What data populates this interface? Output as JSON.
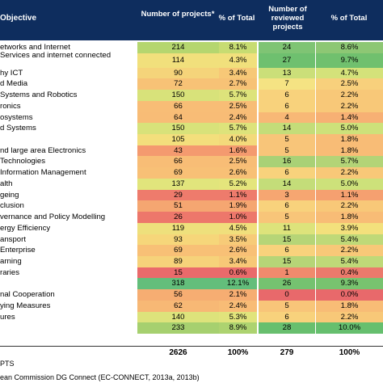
{
  "header": {
    "objective": "Objective",
    "col1": "Number of projects*",
    "col2": "% of Total",
    "col3": "Number of reviewed projects",
    "col4": "% of Total"
  },
  "rows": [
    {
      "label": "etworks and Internet",
      "n": "214",
      "p": "8.1%",
      "rn": "24",
      "rp": "8.6%",
      "c1": "#b5d66f",
      "c2": "#c7dc72",
      "c3": "#7fc474",
      "c4": "#8dc774"
    },
    {
      "label": "Services and internet connected",
      "n": "114",
      "p": "4.3%",
      "rn": "27",
      "rp": "9.7%",
      "c1": "#f1e07c",
      "c2": "#f1e07c",
      "c3": "#6ec06f",
      "c4": "#70c06e",
      "tall": true
    },
    {
      "label": "hy ICT",
      "n": "90",
      "p": "3.4%",
      "rn": "13",
      "rp": "4.7%",
      "c1": "#f5d47a",
      "c2": "#f7c877",
      "c3": "#cbdf79",
      "c4": "#d4e27a"
    },
    {
      "label": "d Media",
      "n": "72",
      "p": "2.7%",
      "rn": "7",
      "rp": "2.5%",
      "c1": "#f7c276",
      "c2": "#f7c276",
      "c3": "#f5e383",
      "c4": "#f8d07c"
    },
    {
      "label": "Systems and Robotics",
      "n": "150",
      "p": "5.7%",
      "rn": "6",
      "rp": "2.2%",
      "c1": "#d8e27a",
      "c2": "#dde37b",
      "c3": "#f8d27c",
      "c4": "#f8c878"
    },
    {
      "label": "ronics",
      "n": "66",
      "p": "2.5%",
      "rn": "6",
      "rp": "2.2%",
      "c1": "#f8bd76",
      "c2": "#f8bd76",
      "c3": "#f8d27c",
      "c4": "#f8c878"
    },
    {
      "label": "osystems",
      "n": "64",
      "p": "2.4%",
      "rn": "4",
      "rp": "1.4%",
      "c1": "#f8bc76",
      "c2": "#f8bc76",
      "c3": "#f8b876",
      "c4": "#f7b074"
    },
    {
      "label": "d Systems",
      "n": "150",
      "p": "5.7%",
      "rn": "14",
      "rp": "5.0%",
      "c1": "#d8e27a",
      "c2": "#dde37b",
      "c3": "#c4dd79",
      "c4": "#cde17a"
    },
    {
      "label": "",
      "n": "105",
      "p": "4.0%",
      "rn": "5",
      "rp": "1.8%",
      "c1": "#f3df7c",
      "c2": "#f3da7b",
      "c3": "#f8c579",
      "c4": "#f8bc76"
    },
    {
      "label": "nd large area Electronics",
      "n": "43",
      "p": "1.6%",
      "rn": "5",
      "rp": "1.8%",
      "c1": "#f49a6f",
      "c2": "#f49a6f",
      "c3": "#f8c579",
      "c4": "#f8bc76"
    },
    {
      "label": "Technologies",
      "n": "66",
      "p": "2.5%",
      "rn": "16",
      "rp": "5.7%",
      "c1": "#f8bd76",
      "c2": "#f8bd76",
      "c3": "#a9d176",
      "c4": "#b3d477"
    },
    {
      "label": "Information Management",
      "n": "69",
      "p": "2.6%",
      "rn": "6",
      "rp": "2.2%",
      "c1": "#f8c076",
      "c2": "#f8c076",
      "c3": "#f8d27c",
      "c4": "#f8c878"
    },
    {
      "label": "alth",
      "n": "137",
      "p": "5.2%",
      "rn": "14",
      "rp": "5.0%",
      "c1": "#e1e57c",
      "c2": "#e4e57c",
      "c3": "#c4dd79",
      "c4": "#cde17a"
    },
    {
      "label": "geing",
      "n": "29",
      "p": "1.1%",
      "rn": "3",
      "rp": "1.1%",
      "c1": "#ee7b6c",
      "c2": "#ee7b6c",
      "c3": "#f6a671",
      "c4": "#f5a070"
    },
    {
      "label": "clusion",
      "n": "51",
      "p": "1.9%",
      "rn": "6",
      "rp": "2.2%",
      "c1": "#f5a671",
      "c2": "#f5a671",
      "c3": "#f8d27c",
      "c4": "#f8c878"
    },
    {
      "label": "vernance and Policy Modelling",
      "n": "26",
      "p": "1.0%",
      "rn": "5",
      "rp": "1.8%",
      "c1": "#ed776b",
      "c2": "#ed776b",
      "c3": "#f8c579",
      "c4": "#f8bc76"
    },
    {
      "label": "ergy Efficiency",
      "n": "119",
      "p": "4.5%",
      "rn": "11",
      "rp": "3.9%",
      "c1": "#eee07c",
      "c2": "#f0df7c",
      "c3": "#dde37b",
      "c4": "#f3e07c"
    },
    {
      "label": "ansport",
      "n": "93",
      "p": "3.5%",
      "rn": "15",
      "rp": "5.4%",
      "c1": "#f6d67a",
      "c2": "#f7cb78",
      "c3": "#b6d577",
      "c4": "#bfd978"
    },
    {
      "label": "Enterprise",
      "n": "69",
      "p": "2.6%",
      "rn": "6",
      "rp": "2.2%",
      "c1": "#f8c076",
      "c2": "#f8c076",
      "c3": "#f8d27c",
      "c4": "#f8c878"
    },
    {
      "label": "arning",
      "n": "89",
      "p": "3.4%",
      "rn": "15",
      "rp": "5.4%",
      "c1": "#f6d27a",
      "c2": "#f7c877",
      "c3": "#b6d577",
      "c4": "#bfd978"
    },
    {
      "label": "raries",
      "n": "15",
      "p": "0.6%",
      "rn": "1",
      "rp": "0.4%",
      "c1": "#ea6a6b",
      "c2": "#ea6a6b",
      "c3": "#f08a6d",
      "c4": "#ec7a6c"
    },
    {
      "label": "",
      "n": "318",
      "p": "12.1%",
      "rn": "26",
      "rp": "9.3%",
      "c1": "#63be7b",
      "c2": "#63be7b",
      "c3": "#75c270",
      "c4": "#78c36f"
    },
    {
      "label": "nal Cooperation",
      "n": "56",
      "p": "2.1%",
      "rn": "0",
      "rp": "0.0%",
      "c1": "#f6ad72",
      "c2": "#f6ad72",
      "c3": "#e8696b",
      "c4": "#e8696b"
    },
    {
      "label": "ying Measures",
      "n": "62",
      "p": "2.4%",
      "rn": "5",
      "rp": "1.8%",
      "c1": "#f7b875",
      "c2": "#f8bc76",
      "c3": "#f8c579",
      "c4": "#f8bc76"
    },
    {
      "label": "ures",
      "n": "140",
      "p": "5.3%",
      "rn": "6",
      "rp": "2.2%",
      "c1": "#dde37b",
      "c2": "#e1e47c",
      "c3": "#f8d27c",
      "c4": "#f8c878"
    },
    {
      "label": "",
      "n": "233",
      "p": "8.9%",
      "rn": "28",
      "rp": "10.0%",
      "c1": "#a6d06f",
      "c2": "#add370",
      "c3": "#68bf6e",
      "c4": "#66bf6e"
    }
  ],
  "total": {
    "n": "2626",
    "p": "100%",
    "rn": "279",
    "rp": "100%"
  },
  "notes": {
    "n1": "PTS",
    "n2": "ean Commission DG Connect (EC-CONNECT, 2013a, 2013b)"
  }
}
